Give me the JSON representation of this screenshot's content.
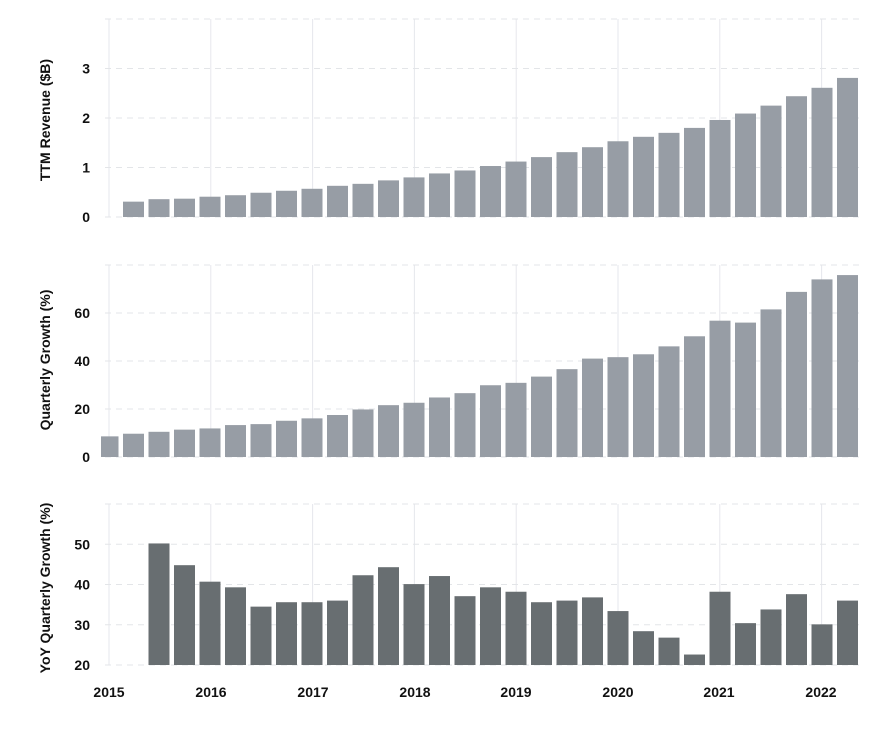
{
  "chart_data": [
    {
      "type": "bar",
      "ylabel": "TTM Revenue ($B)",
      "ylim": [
        0,
        4
      ],
      "yticks": [
        0,
        1,
        2,
        3
      ],
      "grid": true,
      "bar_color": "#979da5",
      "x": [
        "2015 Q2",
        "2015 Q3",
        "2015 Q4",
        "2016 Q1",
        "2016 Q2",
        "2016 Q3",
        "2016 Q4",
        "2017 Q1",
        "2017 Q2",
        "2017 Q3",
        "2017 Q4",
        "2018 Q1",
        "2018 Q2",
        "2018 Q3",
        "2018 Q4",
        "2019 Q1",
        "2019 Q2",
        "2019 Q3",
        "2019 Q4",
        "2020 Q1",
        "2020 Q2",
        "2020 Q3",
        "2020 Q4",
        "2021 Q1",
        "2021 Q2",
        "2021 Q3",
        "2021 Q4",
        "2022 Q1",
        "2022 Q2"
      ],
      "values": [
        0.31,
        0.36,
        0.37,
        0.41,
        0.44,
        0.49,
        0.53,
        0.57,
        0.63,
        0.67,
        0.74,
        0.8,
        0.88,
        0.94,
        1.03,
        1.12,
        1.21,
        1.31,
        1.41,
        1.53,
        1.62,
        1.7,
        1.8,
        1.96,
        2.09,
        2.25,
        2.44,
        2.61,
        2.81
      ]
    },
    {
      "type": "bar",
      "ylabel": "Quarterly Growth (%)",
      "ylim": [
        0,
        80
      ],
      "yticks": [
        0,
        20,
        40,
        60
      ],
      "grid": true,
      "bar_color": "#979da5",
      "x": [
        "2015 Q1",
        "2015 Q2",
        "2015 Q3",
        "2015 Q4",
        "2016 Q1",
        "2016 Q2",
        "2016 Q3",
        "2016 Q4",
        "2017 Q1",
        "2017 Q2",
        "2017 Q3",
        "2017 Q4",
        "2018 Q1",
        "2018 Q2",
        "2018 Q3",
        "2018 Q4",
        "2019 Q1",
        "2019 Q2",
        "2019 Q3",
        "2019 Q4",
        "2020 Q1",
        "2020 Q2",
        "2020 Q3",
        "2020 Q4",
        "2021 Q1",
        "2021 Q2",
        "2021 Q3",
        "2021 Q4",
        "2022 Q1",
        "2022 Q2"
      ],
      "values": [
        8.6,
        9.7,
        10.5,
        11.4,
        11.9,
        13.3,
        13.7,
        15.1,
        16.1,
        17.5,
        19.8,
        21.6,
        22.6,
        24.8,
        26.6,
        29.9,
        30.9,
        33.5,
        36.6,
        41.0,
        41.6,
        42.8,
        46.1,
        50.3,
        56.8,
        56.0,
        61.5,
        68.8,
        74.0,
        75.8
      ]
    },
    {
      "type": "bar",
      "ylabel": "YoY Quarterly Growth (%)",
      "ylim": [
        20,
        60
      ],
      "yticks": [
        20,
        30,
        40,
        50
      ],
      "grid": true,
      "bar_color": "#686e71",
      "x": [
        "2015 Q3",
        "2015 Q4",
        "2016 Q1",
        "2016 Q2",
        "2016 Q3",
        "2016 Q4",
        "2017 Q1",
        "2017 Q2",
        "2017 Q3",
        "2017 Q4",
        "2018 Q1",
        "2018 Q2",
        "2018 Q3",
        "2018 Q4",
        "2019 Q1",
        "2019 Q2",
        "2019 Q3",
        "2019 Q4",
        "2020 Q1",
        "2020 Q2",
        "2020 Q3",
        "2020 Q4",
        "2021 Q1",
        "2021 Q2",
        "2021 Q3",
        "2021 Q4",
        "2022 Q1",
        "2022 Q2"
      ],
      "values": [
        50.2,
        44.8,
        40.7,
        39.3,
        34.5,
        35.6,
        35.6,
        36.0,
        42.3,
        44.3,
        40.1,
        42.1,
        37.1,
        39.3,
        38.2,
        35.6,
        36.0,
        36.8,
        33.4,
        28.4,
        26.8,
        22.6,
        38.2,
        30.4,
        33.8,
        37.6,
        30.1,
        36.0
      ]
    }
  ],
  "x_axis": {
    "tick_labels": [
      "2015",
      "2016",
      "2017",
      "2018",
      "2019",
      "2020",
      "2021",
      "2022"
    ]
  }
}
